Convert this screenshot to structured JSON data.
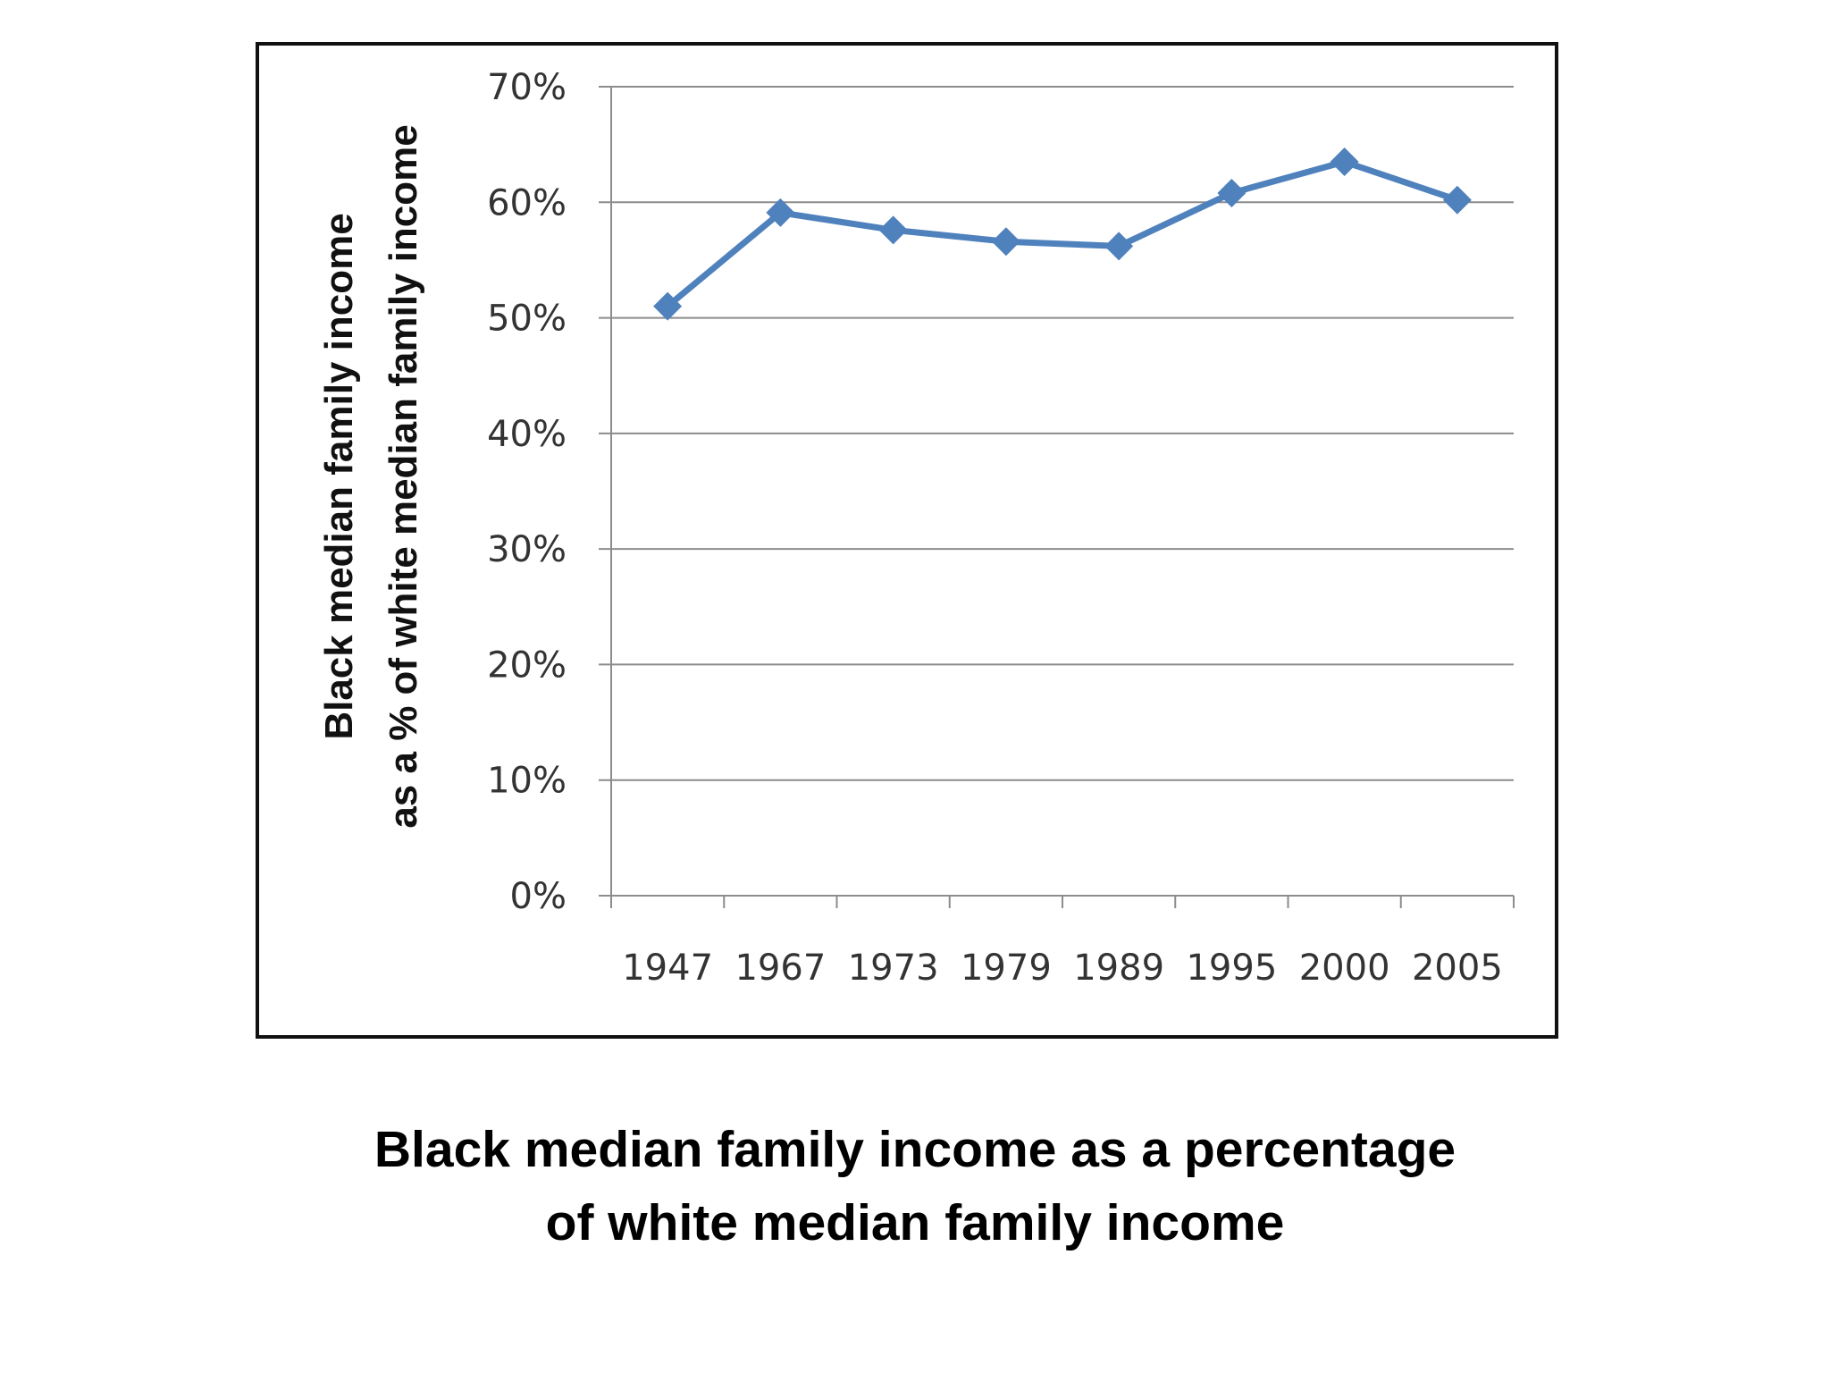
{
  "chart_data": {
    "type": "line",
    "categories": [
      "1947",
      "1967",
      "1973",
      "1979",
      "1989",
      "1995",
      "2000",
      "2005"
    ],
    "series": [
      {
        "values": [
          51,
          59.1,
          57.6,
          56.6,
          56.2,
          60.8,
          63.5,
          60.2
        ],
        "color": "#4f81bd",
        "marker": "diamond"
      }
    ],
    "ylabel_lines": [
      "Black median family income",
      "as a % of white median family income"
    ],
    "ylim": [
      0,
      70
    ],
    "yticks": [
      0,
      10,
      20,
      30,
      40,
      50,
      60,
      70
    ],
    "ytick_suffix": "%",
    "grid": true,
    "legend": "none"
  },
  "caption": {
    "line1": "Black median family income as a percentage",
    "line2": "of white median family income"
  },
  "colors": {
    "series": "#4f81bd",
    "grid": "#8c8c8c",
    "frame": "#111111"
  }
}
